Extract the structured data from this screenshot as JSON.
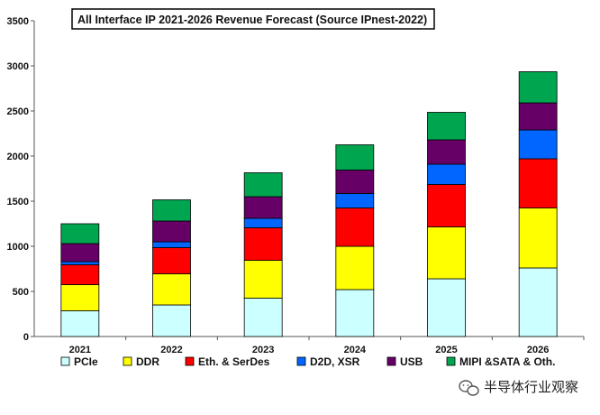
{
  "chart_data": {
    "type": "bar",
    "stacked": true,
    "title": "All Interface IP 2021-2026 Revenue Forecast  (Source IPnest-2022)",
    "categories": [
      "2021",
      "2022",
      "2023",
      "2024",
      "2025",
      "2026"
    ],
    "ylim": [
      0,
      3500
    ],
    "yticks": [
      0,
      500,
      1000,
      1500,
      2000,
      2500,
      3000,
      3500
    ],
    "series": [
      {
        "name": "PCIe",
        "color": "#ccffff",
        "values": [
          285,
          350,
          425,
          520,
          640,
          760
        ]
      },
      {
        "name": "DDR",
        "color": "#ffff00",
        "values": [
          290,
          345,
          420,
          480,
          575,
          665
        ]
      },
      {
        "name": "Eth. & SerDes",
        "color": "#ff0000",
        "values": [
          220,
          290,
          360,
          425,
          470,
          545
        ]
      },
      {
        "name": "D2D, XSR",
        "color": "#0066ff",
        "values": [
          35,
          65,
          105,
          160,
          225,
          320
        ]
      },
      {
        "name": "USB",
        "color": "#660066",
        "values": [
          200,
          230,
          240,
          260,
          270,
          300
        ]
      },
      {
        "name": "MIPI &SATA & Oth.",
        "color": "#00a550",
        "values": [
          220,
          235,
          265,
          280,
          305,
          345
        ]
      }
    ],
    "legend_position": "bottom",
    "grid": false
  },
  "watermark": {
    "text": "半导体行业观察",
    "icon": "wechat-logo-icon"
  }
}
